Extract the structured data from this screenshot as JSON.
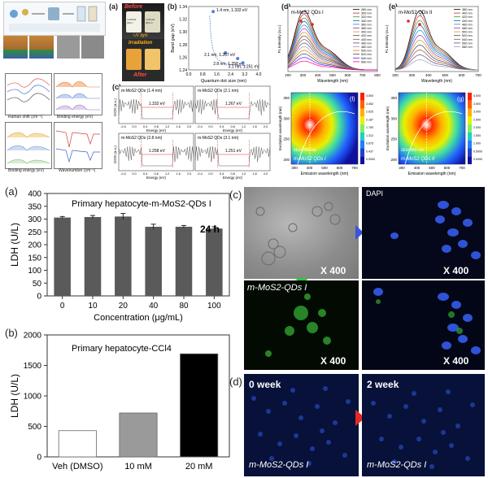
{
  "top": {
    "vial": {
      "before": "Before",
      "uv": "UV light",
      "irradiation": "Irradiation",
      "after": "After",
      "vial1": "m-MoS2 QDs I",
      "vial2": "m-MoS2 QDs II"
    },
    "bandgap": {
      "ylabel": "Band gap (eV)",
      "xlabel": "Quantum dot size (nm)",
      "yticks": [
        "1.24",
        "1.26",
        "1.28",
        "1.30",
        "1.32",
        "1.34"
      ],
      "xticks": [
        "0.0",
        "0.8",
        "1.6",
        "2.4",
        "3.2",
        "4.0"
      ],
      "points": [
        {
          "size": 1.4,
          "gap": 1.332,
          "label": "1.4 nm, 1.332 eV"
        },
        {
          "size": 2.1,
          "gap": 1.267,
          "label": "2.1 nm, 1.267 eV"
        },
        {
          "size": 2.8,
          "gap": 1.258,
          "label": "2.8 nm, 1.258 eV"
        },
        {
          "size": 3.1,
          "gap": 1.251,
          "label": "3.1 nm, 1.251 eV"
        }
      ]
    },
    "dos": {
      "ylabel": "DOS (a.u.)",
      "xlabel": "Energy (eV)",
      "xticks": [
        "-0.4",
        "0.0",
        "0.4",
        "0.8",
        "1.2",
        "1.6",
        "2.0"
      ],
      "panels": [
        {
          "title": "m-MoS2 QDs (1.4 nm)",
          "gap": "1.332 eV"
        },
        {
          "title": "m-MoS2 QDs (2.1 nm)",
          "gap": "1.267 eV"
        },
        {
          "title": "m-MoS2 QDs (2.8 nm)",
          "gap": "1.258 eV"
        },
        {
          "title": "m-MoS2 QDs (3.1 nm)",
          "gap": "1.251 eV"
        }
      ]
    },
    "pl_d": {
      "title": "m-MoS2 QDs I",
      "ylabel": "PL intensity (a.u.)",
      "xlabel": "Wavelength (nm)",
      "xticks": [
        "200",
        "300",
        "400",
        "500",
        "600",
        "700",
        "800"
      ],
      "legend": [
        "280 nm",
        "300 nm",
        "320 nm",
        "340 nm",
        "360 nm",
        "380 nm",
        "400 nm",
        "420 nm",
        "440 nm",
        "460 nm",
        "480 nm",
        "500 nm",
        "520 nm",
        "540 nm",
        "560 nm"
      ]
    },
    "pl_e": {
      "title": "m-MoS2 QDs II",
      "ylabel": "PL intensity (a.u.)",
      "xlabel": "Wavelength (nm)",
      "xticks": [
        "200",
        "300",
        "400",
        "500",
        "600",
        "700"
      ],
      "legend": [
        "380 nm",
        "400 nm",
        "420 nm",
        "440 nm",
        "460 nm",
        "480 nm",
        "500 nm",
        "520 nm",
        "540 nm",
        "560 nm",
        "580 nm"
      ]
    },
    "map_f": {
      "label": "m-MoS2 QDs I",
      "ex": "λEx=280 nm",
      "ylabel": "Excitation wavelength (nm)",
      "xlabel": "Emission wavelength (nm)",
      "yticks": [
        "350",
        "300",
        "250",
        "200"
      ],
      "xticks": [
        "300",
        "400",
        "500",
        "600",
        "700"
      ],
      "scale": [
        "3.500",
        "3.062",
        "2.625",
        "2.187",
        "1.750",
        "1.312",
        "0.875",
        "0.437",
        "0.0000"
      ]
    },
    "map_g": {
      "label": "m-MoS2 QDs II",
      "ex": "λEx=360 nm",
      "ylabel": "Excitation wavelength (nm)",
      "xlabel": "Emission wavelength (nm)",
      "yticks": [
        "350",
        "300",
        "250",
        "200"
      ],
      "xticks": [
        "300",
        "400",
        "500",
        "600",
        "700"
      ],
      "scale": [
        "4.000",
        "3.500",
        "3.000",
        "2.500",
        "2.000",
        "1.500",
        "1.000",
        "0.5000",
        "0.0000"
      ]
    },
    "xps_labels": {
      "raman": "Raman shift (cm⁻¹)",
      "binding": "Binding energy (eV)",
      "wavenumber": "Wavenumber (cm⁻¹)",
      "intensity": "Intensity (a.u.)"
    }
  },
  "letters": {
    "a_top": "(a)",
    "b_top": "(b)",
    "c_top": "(c)",
    "d_top": "(d)",
    "e_top": "(e)",
    "f_top": "(f)",
    "g_top": "(g)",
    "a": "(a)",
    "b": "(b)",
    "c": "(c)",
    "d": "(d)"
  },
  "chart_data": [
    {
      "type": "bar",
      "title": "Primary hepatocyte-m-MoS2-QDs I",
      "annotation": "24 h",
      "xlabel": "Concentration (μg/mL)",
      "ylabel": "LDH (U/L)",
      "categories": [
        "0",
        "10",
        "20",
        "40",
        "80",
        "100"
      ],
      "values": [
        306,
        308,
        310,
        270,
        270,
        263
      ],
      "errors": [
        4,
        6,
        12,
        10,
        5,
        7
      ],
      "ylim": [
        0,
        400
      ],
      "yticks": [
        "0",
        "50",
        "100",
        "150",
        "200",
        "250",
        "300",
        "350",
        "400"
      ],
      "bar_color": "#5a5a5a"
    },
    {
      "type": "bar",
      "title": "Primary hepatocyte-CCl4",
      "xlabel": "",
      "ylabel": "LDH (U/L)",
      "categories": [
        "Veh (DMSO)",
        "10 mM",
        "20 mM"
      ],
      "values": [
        430,
        720,
        1690
      ],
      "ylim": [
        0,
        2000
      ],
      "yticks": [
        "0",
        "500",
        "1000",
        "1500",
        "2000"
      ],
      "bar_colors": [
        "#ffffff",
        "#9a9a9a",
        "#000000"
      ]
    }
  ],
  "micro": {
    "dapi": "DAPI",
    "mag": "X 400",
    "qd": "m-MoS2-QDs I",
    "week0": "0 week",
    "week2": "2 week"
  }
}
